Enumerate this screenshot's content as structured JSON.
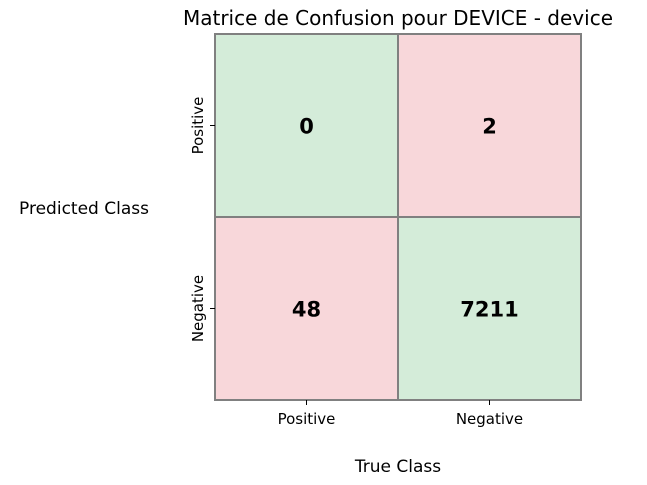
{
  "chart_data": {
    "type": "heatmap",
    "title": "Matrice de Confusion pour DEVICE - device",
    "xlabel": "True Class",
    "ylabel": "Predicted Class",
    "x_categories": [
      "Positive",
      "Negative"
    ],
    "y_categories": [
      "Positive",
      "Negative"
    ],
    "values": [
      [
        0,
        2
      ],
      [
        48,
        7211
      ]
    ],
    "colors": {
      "correct": "#d4ecd9",
      "incorrect": "#f8d7da",
      "border": "#808080"
    },
    "grid": true,
    "legend": "none"
  }
}
